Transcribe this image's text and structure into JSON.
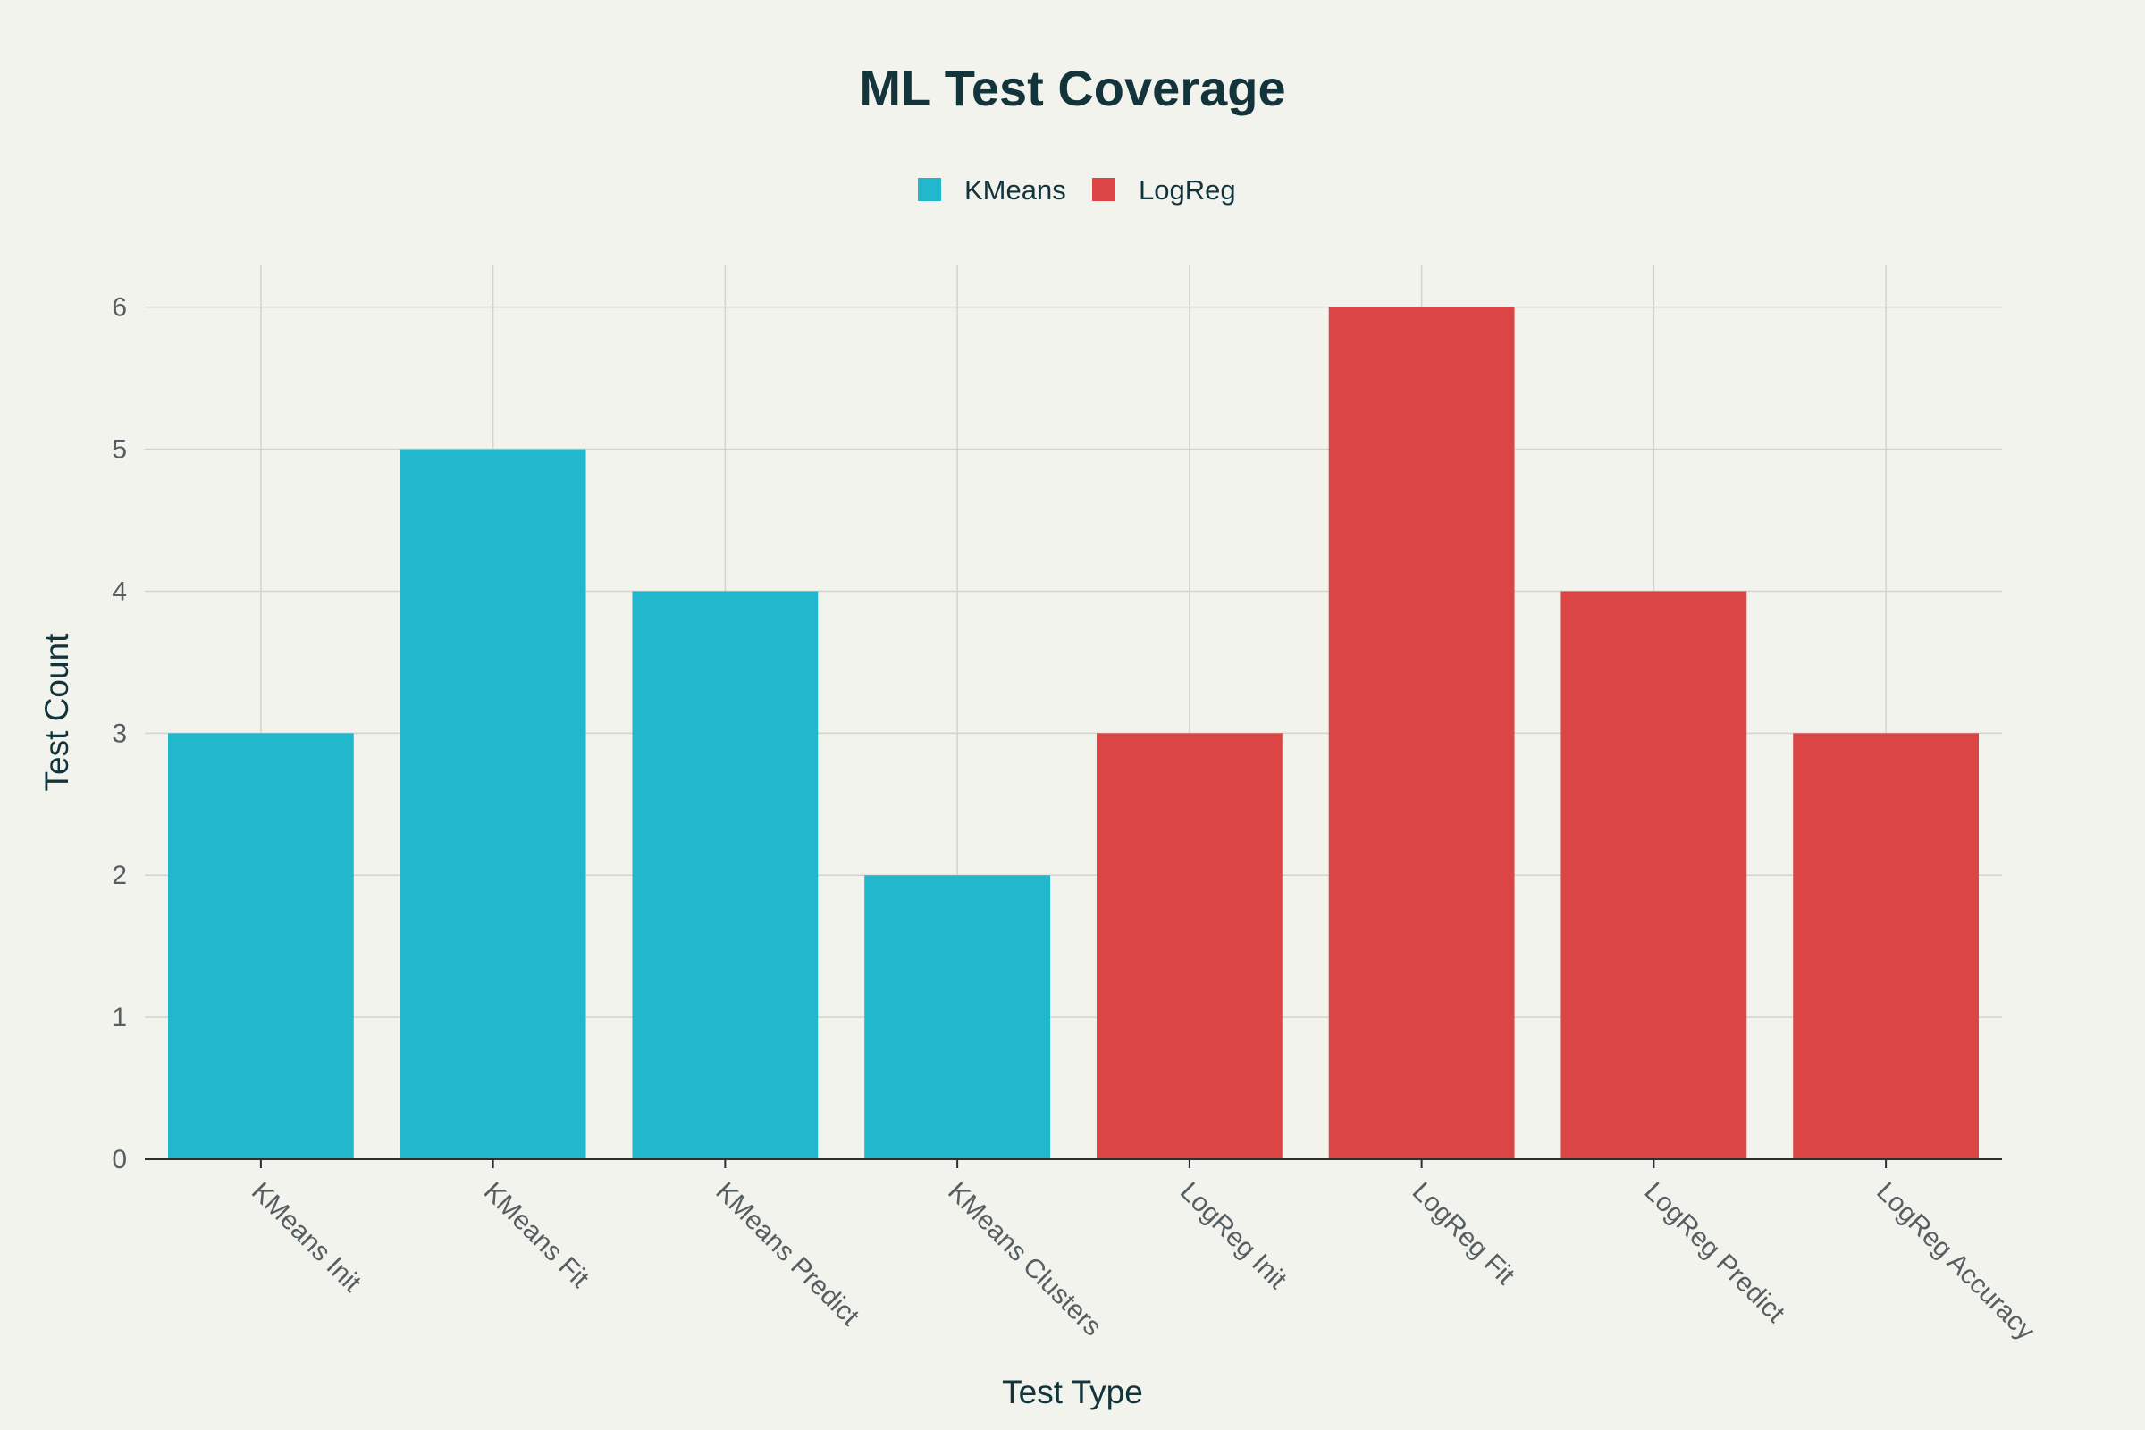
{
  "chart_data": {
    "type": "bar",
    "title": "ML Test Coverage",
    "xlabel": "Test Type",
    "ylabel": "Test Count",
    "ylim": [
      0,
      6.3
    ],
    "yticks": [
      0,
      1,
      2,
      3,
      4,
      5,
      6
    ],
    "grid": true,
    "legend_position": "top-center",
    "categories": [
      "KMeans Init",
      "KMeans Fit",
      "KMeans Predict",
      "KMeans Clusters",
      "LogReg Init",
      "LogReg Fit",
      "LogReg Predict",
      "LogReg Accuracy"
    ],
    "series": [
      {
        "name": "KMeans",
        "color": "#21b8cd",
        "values": [
          3,
          5,
          4,
          2,
          null,
          null,
          null,
          null
        ]
      },
      {
        "name": "LogReg",
        "color": "#db4545",
        "values": [
          null,
          null,
          null,
          null,
          3,
          6,
          4,
          3
        ]
      }
    ]
  }
}
